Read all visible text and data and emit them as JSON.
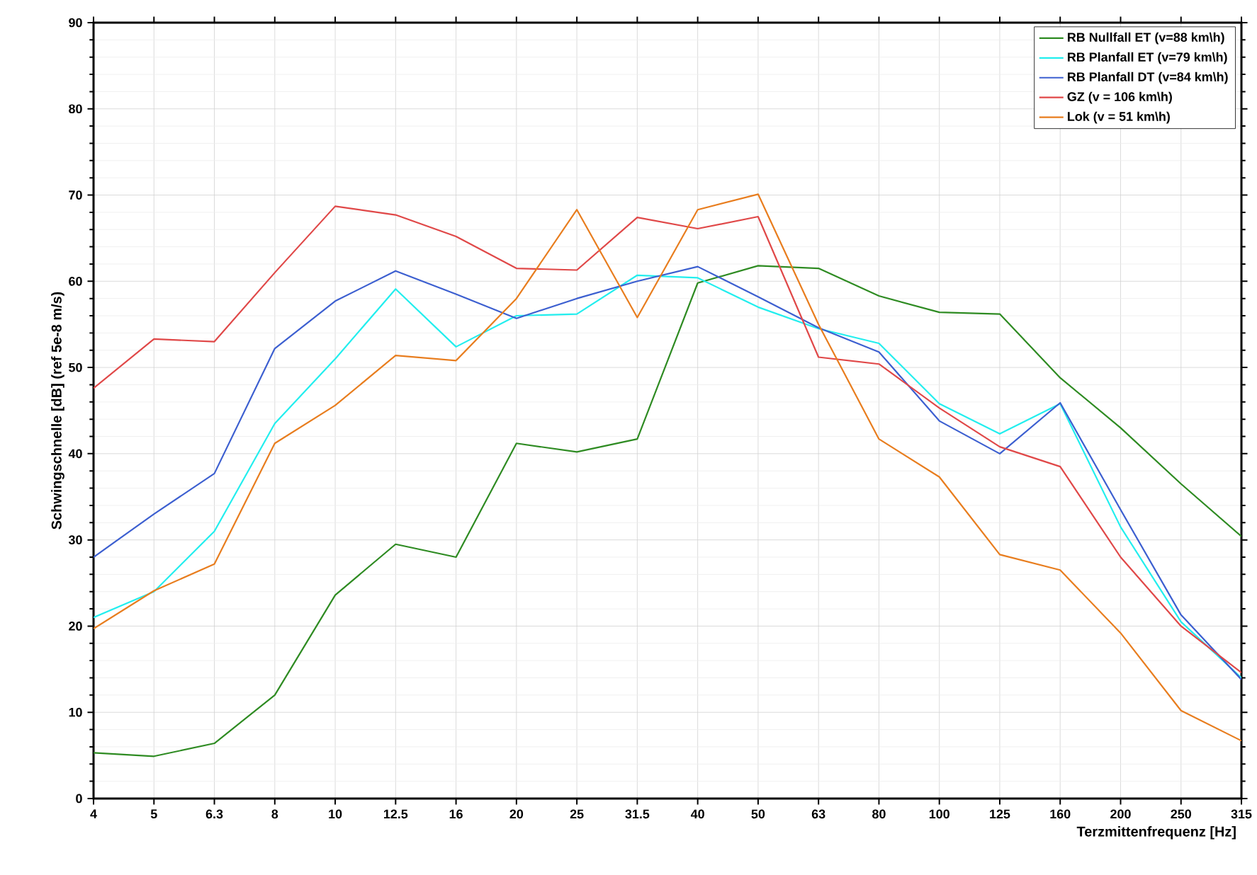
{
  "chart_data": {
    "type": "line",
    "xlabel": "Terzmittenfrequenz [Hz]",
    "ylabel": "Schwingschnelle [dB] (ref 5e-8 m/s)",
    "categories": [
      "4",
      "5",
      "6.3",
      "8",
      "10",
      "12.5",
      "16",
      "20",
      "25",
      "31.5",
      "40",
      "50",
      "63",
      "80",
      "100",
      "125",
      "160",
      "200",
      "250",
      "315"
    ],
    "ylim": [
      0,
      90
    ],
    "yticks": [
      0,
      10,
      20,
      30,
      40,
      50,
      60,
      70,
      80,
      90
    ],
    "grid": true,
    "legend": "top right",
    "series": [
      {
        "name": "RB Nullfall ET (v=88 km\\h)",
        "color": "#2e8b22",
        "values": [
          5.3,
          4.9,
          6.4,
          12,
          23.6,
          29.5,
          28,
          41.2,
          40.2,
          41.7,
          59.8,
          61.8,
          61.5,
          58.3,
          56.4,
          56.2,
          48.8,
          43,
          36.5,
          30.4
        ]
      },
      {
        "name": "RB Planfall ET (v=79 km\\h)",
        "color": "#22eeee",
        "values": [
          21,
          24,
          31,
          43.5,
          51,
          59.1,
          52.4,
          56,
          56.2,
          60.7,
          60.4,
          57,
          54.5,
          52.8,
          45.8,
          42.3,
          45.8,
          31.5,
          20.5,
          14
        ]
      },
      {
        "name": "RB Planfall DT (v=84 km\\h)",
        "color": "#3c5fd0",
        "values": [
          28,
          33,
          37.7,
          52.2,
          57.7,
          61.2,
          58.5,
          55.7,
          58,
          60,
          61.7,
          58.2,
          54.6,
          51.8,
          43.8,
          40,
          45.9,
          33.5,
          21.3,
          13.8
        ]
      },
      {
        "name": "GZ (v = 106 km\\h)",
        "color": "#e04848",
        "values": [
          47.6,
          53.3,
          53,
          61,
          68.7,
          67.7,
          65.2,
          61.5,
          61.3,
          67.4,
          66.1,
          67.5,
          51.2,
          50.4,
          45.3,
          40.8,
          38.5,
          28,
          20,
          14.6
        ]
      },
      {
        "name": "Lok (v = 51 km\\h)",
        "color": "#e87d1e",
        "values": [
          19.7,
          24.1,
          27.2,
          41.2,
          45.6,
          51.4,
          50.8,
          58,
          68.3,
          55.8,
          68.3,
          70.1,
          55,
          41.7,
          37.3,
          28.3,
          26.5,
          19.2,
          10.2,
          6.7
        ]
      }
    ]
  }
}
